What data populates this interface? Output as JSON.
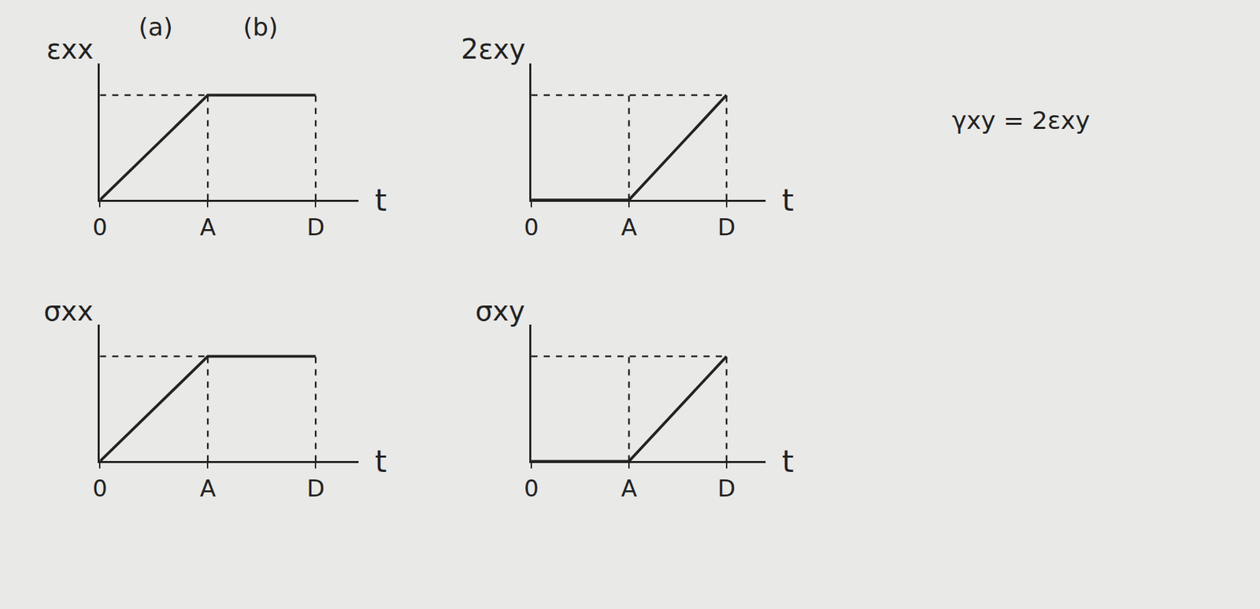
{
  "chart_data": [
    {
      "type": "line",
      "ylabel": "εxx",
      "xlabel": "t",
      "annotations": [
        "(a)",
        "(b)"
      ],
      "x": [
        0,
        1,
        2
      ],
      "values": [
        0,
        1,
        1
      ],
      "xlim": [
        0,
        2.4
      ],
      "ylim": [
        0,
        1.3
      ],
      "xticks": [
        0,
        {
          "value": 1,
          "label": "A"
        },
        {
          "value": 2,
          "label": "D"
        }
      ],
      "tick_labels": "x",
      "grid": false,
      "color": "#222222"
    },
    {
      "type": "line",
      "ylabel": "2εxy",
      "xlabel": "t",
      "annotations": [
        "γxy = 2εxy"
      ],
      "x": [
        0,
        1,
        2
      ],
      "values": [
        0,
        0,
        1
      ],
      "xlim": [
        0,
        2.4
      ],
      "ylim": [
        0,
        1.3
      ],
      "xticks": [
        0,
        {
          "value": 1,
          "label": "A"
        },
        {
          "value": 2,
          "label": "D"
        }
      ],
      "tick_labels": "x",
      "grid": false,
      "color": "#222222"
    },
    {
      "type": "line",
      "ylabel": "σxx",
      "xlabel": "t",
      "x": [
        0,
        1,
        2
      ],
      "values": [
        0,
        1,
        1
      ],
      "xlim": [
        0,
        2.4
      ],
      "ylim": [
        0,
        1.3
      ],
      "xticks": [
        0,
        {
          "value": 1,
          "label": "A"
        },
        {
          "value": 2,
          "label": "D"
        }
      ],
      "tick_labels": "x",
      "grid": false,
      "color": "#222222"
    },
    {
      "type": "line",
      "ylabel": "σxy",
      "xlabel": "t",
      "x": [
        0,
        1,
        2
      ],
      "values": [
        0,
        0,
        1
      ],
      "xlim": [
        0,
        2.4
      ],
      "ylim": [
        0,
        1.3
      ],
      "xticks": [
        0,
        {
          "value": 1,
          "label": "A"
        },
        {
          "value": 2,
          "label": "D"
        }
      ],
      "tick_labels": "x",
      "grid": false,
      "color": "#222222"
    }
  ]
}
